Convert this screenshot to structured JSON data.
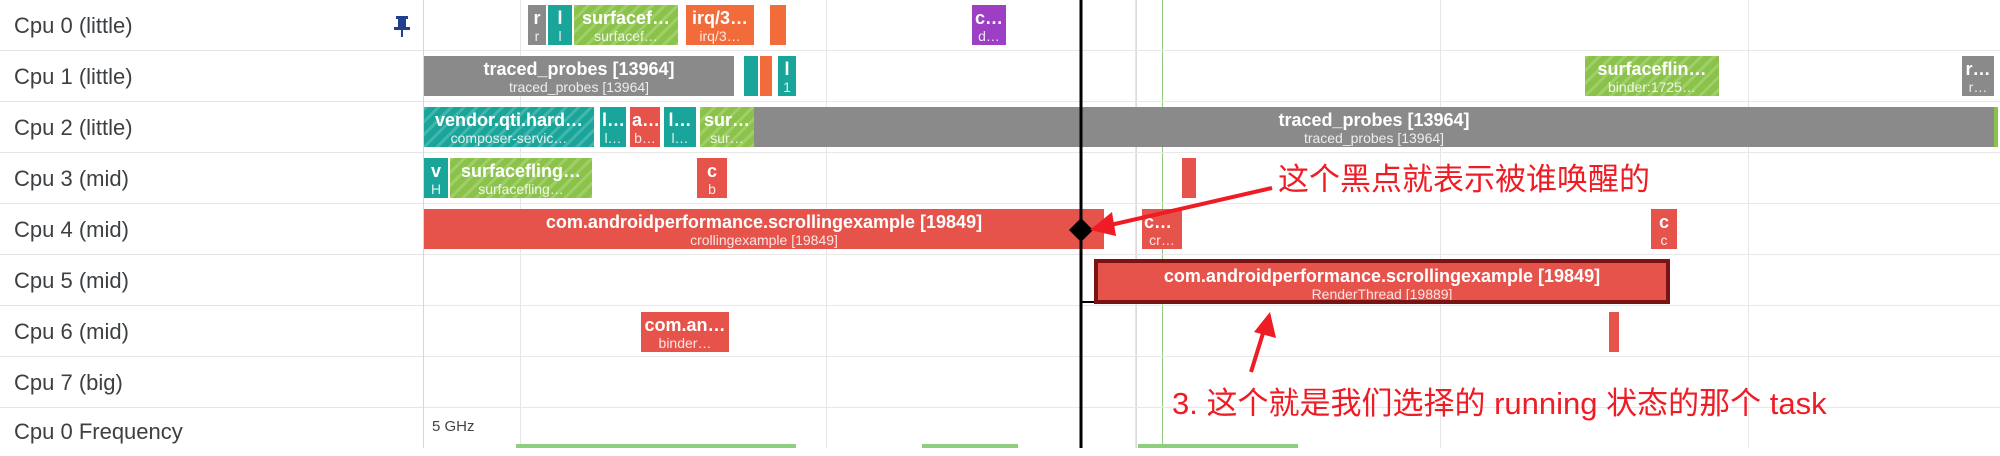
{
  "rows": [
    {
      "label": "Cpu 0 (little)",
      "pinned": true
    },
    {
      "label": "Cpu 1 (little)"
    },
    {
      "label": "Cpu 2 (little)"
    },
    {
      "label": "Cpu 3 (mid)"
    },
    {
      "label": "Cpu 4 (mid)"
    },
    {
      "label": "Cpu 5 (mid)"
    },
    {
      "label": "Cpu 6 (mid)"
    },
    {
      "label": "Cpu 7 (big)"
    },
    {
      "label": "Cpu 0 Frequency"
    }
  ],
  "frequency_scale": "5 GHz",
  "slices": {
    "cpu0": [
      {
        "title": "r",
        "sub": "r",
        "color": "#8a8a8a"
      },
      {
        "title": "l",
        "sub": "l",
        "color": "#1aa59a"
      },
      {
        "title": "surfacef…",
        "sub": "surfacef…",
        "color": "#8bc34a"
      },
      {
        "title": "irq/3…",
        "sub": "irq/3…",
        "color": "#f26b3a"
      },
      {
        "title": "",
        "sub": "",
        "color": "#f26b3a"
      },
      {
        "title": "c…",
        "sub": "d…",
        "color": "#9c3fc4"
      }
    ],
    "cpu1": [
      {
        "title": "traced_probes [13964]",
        "sub": "traced_probes [13964]",
        "color": "#8a8a8a"
      },
      {
        "title": "",
        "sub": "",
        "color": "#1aa59a"
      },
      {
        "title": "",
        "sub": "",
        "color": "#f26b3a"
      },
      {
        "title": "l",
        "sub": "1",
        "color": "#1aa59a"
      },
      {
        "title": "surfaceflin…",
        "sub": "binder:1725…",
        "color": "#8bc34a"
      },
      {
        "title": "r…",
        "sub": "r…",
        "color": "#8a8a8a"
      }
    ],
    "cpu2": [
      {
        "title": "vendor.qti.hard…",
        "sub": "composer-servic…",
        "color": "#1aa59a"
      },
      {
        "title": "l…",
        "sub": "l…",
        "color": "#1aa59a"
      },
      {
        "title": "a…",
        "sub": "b…",
        "color": "#e5534b"
      },
      {
        "title": "l…",
        "sub": "l…",
        "color": "#1aa59a"
      },
      {
        "title": "sur…",
        "sub": "sur…",
        "color": "#8bc34a"
      },
      {
        "title": "traced_probes [13964]",
        "sub": "traced_probes [13964]",
        "color": "#8a8a8a"
      },
      {
        "title": "",
        "sub": "",
        "color": "#8bc34a"
      }
    ],
    "cpu3": [
      {
        "title": "v",
        "sub": "H",
        "color": "#1aa59a"
      },
      {
        "title": "surfacefling…",
        "sub": "surfacefling…",
        "color": "#8bc34a"
      },
      {
        "title": "c",
        "sub": "b",
        "color": "#e5534b"
      },
      {
        "title": "",
        "sub": "",
        "color": "#e5534b"
      }
    ],
    "cpu4": [
      {
        "title": "com.androidperformance.scrollingexample [19849]",
        "sub": "crollingexample [19849]",
        "color": "#e5534b"
      },
      {
        "title": "co…",
        "sub": "cr…",
        "color": "#e5534b"
      },
      {
        "title": "c",
        "sub": "c",
        "color": "#e5534b"
      }
    ],
    "cpu5": [
      {
        "title": "com.androidperformance.scrollingexample [19849]",
        "sub": "RenderThread [19889]",
        "color": "#e5534b"
      }
    ],
    "cpu6": [
      {
        "title": "com.an…",
        "sub": "binder…",
        "color": "#e5534b"
      },
      {
        "title": "",
        "sub": "",
        "color": "#e5534b"
      }
    ]
  },
  "annotations": {
    "wakeup_note": "这个黑点就表示被谁唤醒的",
    "running_note": "3. 这个就是我们选择的 running 状态的那个 task"
  },
  "colors": {
    "accent": "#ee1c25",
    "selection_border": "#7a1414",
    "pin": "#1f3f8f"
  }
}
